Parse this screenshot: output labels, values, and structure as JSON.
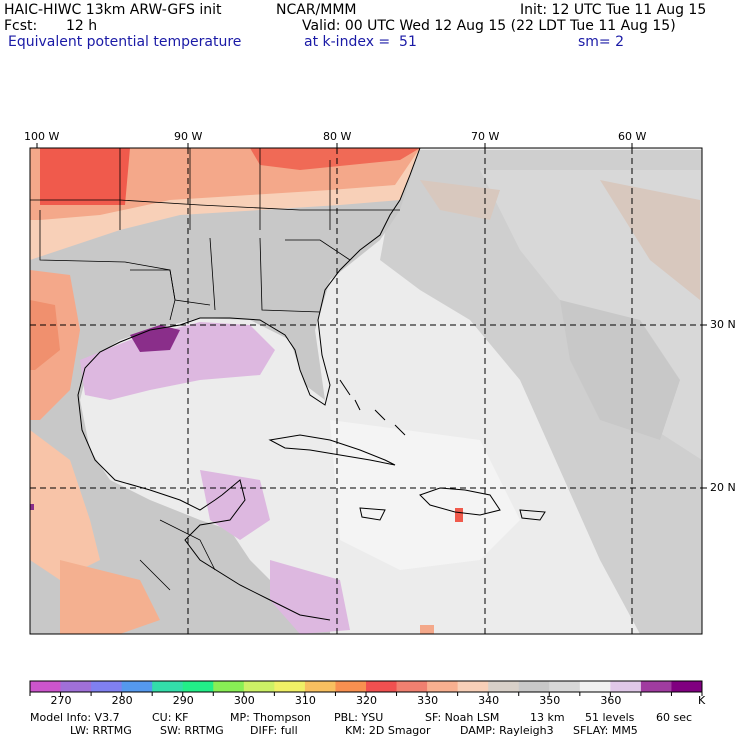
{
  "header": {
    "model_title": "HAIC-HIWC 13km ARW-GFS init",
    "org": "NCAR/MMM",
    "init": "Init: 12 UTC Tue 11 Aug 15",
    "fcst_label": "Fcst:",
    "fcst_value": "12 h",
    "valid": "Valid: 00 UTC Wed 12 Aug 15 (22 LDT Tue 11 Aug 15)",
    "field": "Equivalent potential temperature",
    "level": "at k-index =  51",
    "smoothing": "sm= 2"
  },
  "map": {
    "lon_labels": [
      "100 W",
      "90 W",
      "80 W",
      "70 W",
      "60 W"
    ],
    "lat_labels": [
      "30 N",
      "20 N"
    ]
  },
  "legend": {
    "colors": [
      "#cc55cc",
      "#a070d8",
      "#8080f0",
      "#5599ee",
      "#33ddaa",
      "#22ee88",
      "#88ee55",
      "#ccf066",
      "#f0f066",
      "#f8c060",
      "#f89050",
      "#f05050",
      "#f08070",
      "#f8b090",
      "#f8d0b8",
      "#d8d0c8",
      "#c8c8c8",
      "#d8d8d8",
      "#f0f0f0",
      "#e0c8e8",
      "#a03ca0",
      "#800080"
    ],
    "labels": [
      "270",
      "280",
      "290",
      "300",
      "310",
      "320",
      "330",
      "340",
      "350",
      "360"
    ],
    "unit": "K"
  },
  "footer": {
    "line1": [
      "Model Info: V3.7",
      "CU: KF",
      "MP: Thompson",
      "PBL: YSU",
      "SF: Noah LSM",
      "13 km",
      "51 levels",
      "60 sec"
    ],
    "line2": [
      "LW: RRTMG",
      "SW: RRTMG",
      "DIFF: full",
      "KM: 2D Smagor",
      "DAMP: Rayleigh3",
      "SFLAY: MM5"
    ]
  },
  "colors": {
    "ocean": "#ececec",
    "land": "#c8c8c8",
    "warm": "#f4a88a",
    "hot": "#f05a4c",
    "cool": "#ddb8e0",
    "purple": "#8a2e8a",
    "title_blue": "#1a1aa6"
  }
}
